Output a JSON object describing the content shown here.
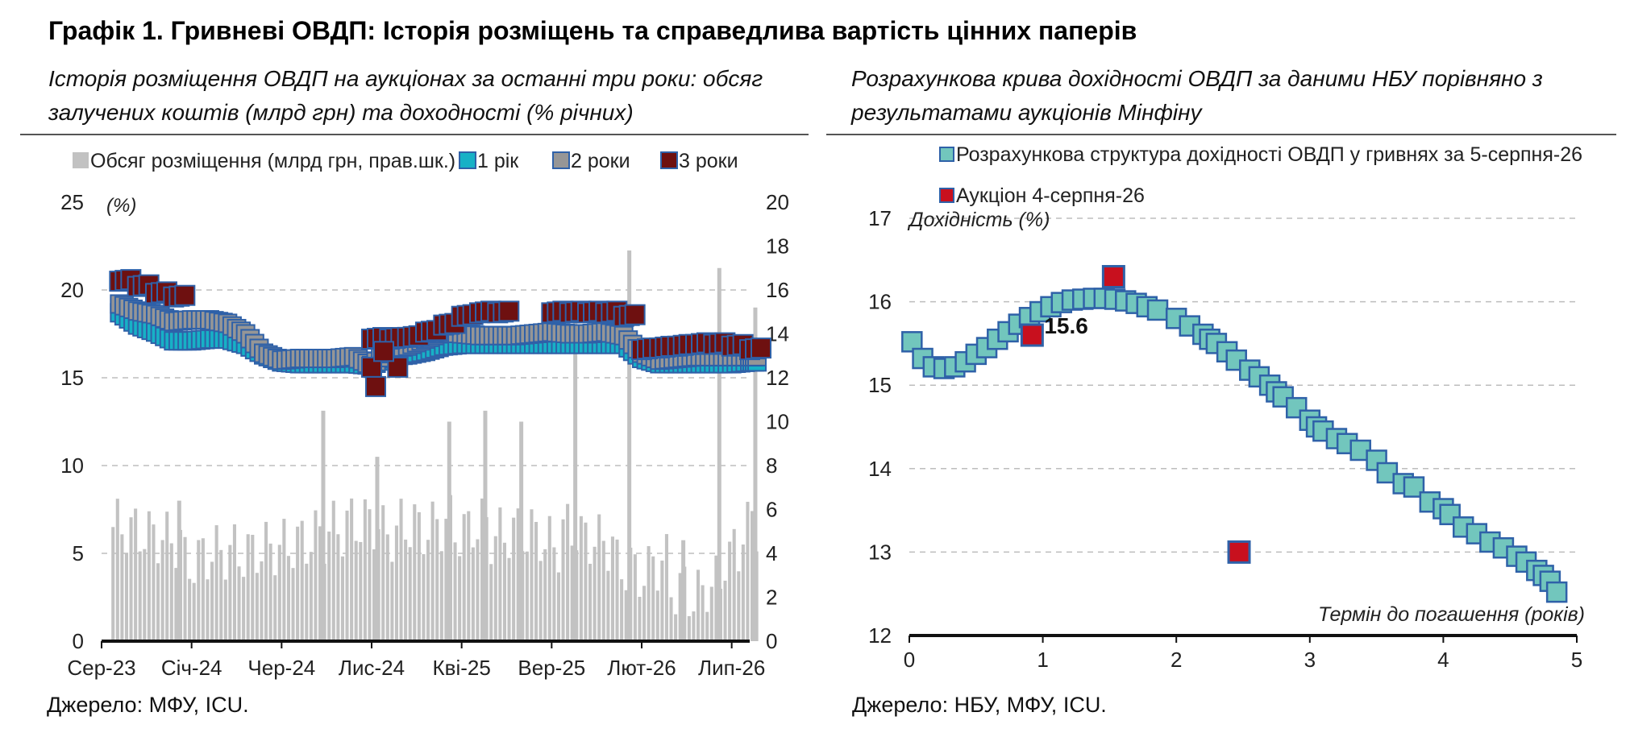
{
  "title": "Графік 1. Гривневі ОВДП: Історія розміщень та справедлива вартість цінних паперів",
  "colors": {
    "bars": "#c2c2c2",
    "y1": "#17b1c6",
    "y2": "#969696",
    "y3": "#6e1010",
    "fill_curve": "#72c6bd",
    "border": "#2f61a8",
    "auction": "#c8101e"
  },
  "left": {
    "subtitle": "Історія розміщення ОВДП на аукціонах за останні три роки: обсяг залучених коштів (млрд грн) та доходності (% річних)",
    "source": "Джерело: МФУ, ICU."
  },
  "right": {
    "subtitle": "Розрахункова крива дохідності ОВДП за даними НБУ порівняно з результатами аукціонів Мінфіну",
    "source": "Джерело: НБУ, МФУ, ICU."
  },
  "chart_data": [
    {
      "type": "bar",
      "legend": [
        {
          "key": "bars",
          "label": "Обсяг розміщення (млрд грн, прав.шк.)"
        },
        {
          "key": "y1",
          "label": "1 рік"
        },
        {
          "key": "y2",
          "label": "2 роки"
        },
        {
          "key": "y3",
          "label": "3 роки"
        }
      ],
      "legend_position": "top",
      "ylabel_left": "(%)",
      "ylim_left": [
        0,
        25
      ],
      "yticks_left": [
        0,
        5,
        10,
        15,
        20,
        25
      ],
      "ylim_right": [
        0,
        20
      ],
      "yticks_right": [
        0,
        2,
        4,
        6,
        8,
        10,
        12,
        14,
        16,
        18,
        20
      ],
      "x_range": [
        "2023-09",
        "2026-08"
      ],
      "xtick_labels": [
        {
          "label": "Сер-23",
          "x": "2023-08"
        },
        {
          "label": "Січ-24",
          "x": "2024-01"
        },
        {
          "label": "Чер-24",
          "x": "2024-06"
        },
        {
          "label": "Лис-24",
          "x": "2024-11"
        },
        {
          "label": "Кві-25",
          "x": "2025-04"
        },
        {
          "label": "Вер-25",
          "x": "2025-09"
        },
        {
          "label": "Лют-26",
          "x": "2026-02"
        },
        {
          "label": "Лип-26",
          "x": "2026-07"
        }
      ],
      "grid": true,
      "series": [
        {
          "key": "bars",
          "axis": "right",
          "points": [
            [
              "2023-09",
              5.2
            ],
            [
              "2023-10",
              5.0
            ],
            [
              "2023-11",
              4.8
            ],
            [
              "2023-12",
              4.6
            ],
            [
              "2024-01",
              3.6
            ],
            [
              "2024-02",
              4.0
            ],
            [
              "2024-03",
              4.1
            ],
            [
              "2024-04",
              4.0
            ],
            [
              "2024-05",
              4.2
            ],
            [
              "2024-06",
              4.3
            ],
            [
              "2024-07",
              4.5
            ],
            [
              "2024-08",
              4.8
            ],
            [
              "2024-09",
              5.1
            ],
            [
              "2024-10",
              5.4
            ],
            [
              "2024-11",
              5.4
            ],
            [
              "2024-12",
              4.9
            ],
            [
              "2025-01",
              5.3
            ],
            [
              "2025-02",
              5.1
            ],
            [
              "2025-03",
              5.4
            ],
            [
              "2025-04",
              5.0
            ],
            [
              "2025-05",
              5.3
            ],
            [
              "2025-06",
              4.8
            ],
            [
              "2025-07",
              5.0
            ],
            [
              "2025-08",
              4.9
            ],
            [
              "2025-09",
              4.4
            ],
            [
              "2025-10",
              5.1
            ],
            [
              "2025-11",
              4.7
            ],
            [
              "2025-12",
              4.5
            ],
            [
              "2026-01",
              3.4
            ],
            [
              "2026-02",
              3.1
            ],
            [
              "2026-03",
              3.6
            ],
            [
              "2026-04",
              2.4
            ],
            [
              "2026-05",
              2.1
            ],
            [
              "2026-06",
              2.6
            ],
            [
              "2026-07",
              4.0
            ],
            [
              "2026-08",
              5.3
            ]
          ],
          "spikes": [
            [
              "2023-12",
              6.4
            ],
            [
              "2024-08",
              10.5
            ],
            [
              "2024-11",
              8.4
            ],
            [
              "2025-03",
              10.0
            ],
            [
              "2025-05",
              10.5
            ],
            [
              "2025-07",
              10.0
            ],
            [
              "2025-10",
              15.5
            ],
            [
              "2026-01",
              17.8
            ],
            [
              "2026-04",
              4.6
            ],
            [
              "2026-06",
              17.0
            ],
            [
              "2026-08",
              15.2
            ]
          ]
        },
        {
          "key": "y1",
          "axis": "left",
          "points": [
            [
              "2023-09",
              18.7
            ],
            [
              "2023-10",
              18.0
            ],
            [
              "2023-11",
              17.6
            ],
            [
              "2023-12",
              17.1
            ],
            [
              "2024-01",
              17.1
            ],
            [
              "2024-02",
              17.2
            ],
            [
              "2024-03",
              17.2
            ],
            [
              "2024-04",
              16.9
            ],
            [
              "2024-05",
              16.3
            ],
            [
              "2024-06",
              15.9
            ],
            [
              "2024-07",
              15.8
            ],
            [
              "2024-08",
              15.8
            ],
            [
              "2024-09",
              15.8
            ],
            [
              "2024-10",
              15.8
            ],
            [
              "2024-11",
              15.7
            ],
            [
              "2024-12",
              16.2
            ],
            [
              "2025-01",
              16.3
            ],
            [
              "2025-02",
              16.5
            ],
            [
              "2025-03",
              16.8
            ],
            [
              "2025-04",
              16.9
            ],
            [
              "2025-05",
              16.9
            ],
            [
              "2025-06",
              16.9
            ],
            [
              "2025-07",
              16.9
            ],
            [
              "2025-08",
              16.9
            ],
            [
              "2025-09",
              16.9
            ],
            [
              "2025-10",
              16.9
            ],
            [
              "2025-11",
              16.9
            ],
            [
              "2025-12",
              16.9
            ],
            [
              "2026-01",
              16.9
            ],
            [
              "2026-02",
              16.1
            ],
            [
              "2026-03",
              15.8
            ],
            [
              "2026-04",
              15.8
            ],
            [
              "2026-05",
              15.8
            ],
            [
              "2026-06",
              15.8
            ],
            [
              "2026-07",
              15.8
            ],
            [
              "2026-08",
              15.9
            ]
          ]
        },
        {
          "key": "y2",
          "axis": "left",
          "points": [
            [
              "2023-09",
              19.2
            ],
            [
              "2023-10",
              18.8
            ],
            [
              "2023-11",
              18.6
            ],
            [
              "2023-12",
              18.2
            ],
            [
              "2024-01",
              18.3
            ],
            [
              "2024-02",
              18.3
            ],
            [
              "2024-03",
              18.1
            ],
            [
              "2024-04",
              17.5
            ],
            [
              "2024-05",
              16.4
            ],
            [
              "2024-06",
              16.0
            ],
            [
              "2024-07",
              16.1
            ],
            [
              "2024-08",
              16.1
            ],
            [
              "2024-09",
              16.1
            ],
            [
              "2024-10",
              16.2
            ],
            [
              "2024-11",
              15.7
            ],
            [
              "2024-12",
              16.6
            ],
            [
              "2025-01",
              16.8
            ],
            [
              "2025-02",
              17.2
            ],
            [
              "2025-03",
              17.6
            ],
            [
              "2025-04",
              17.5
            ],
            [
              "2025-05",
              17.4
            ],
            [
              "2025-06",
              17.4
            ],
            [
              "2025-07",
              17.4
            ],
            [
              "2025-08",
              17.5
            ],
            [
              "2025-09",
              17.6
            ],
            [
              "2025-10",
              17.5
            ],
            [
              "2025-11",
              17.5
            ],
            [
              "2025-12",
              17.6
            ],
            [
              "2026-01",
              17.4
            ],
            [
              "2026-02",
              16.4
            ],
            [
              "2026-03",
              16.0
            ],
            [
              "2026-04",
              16.1
            ],
            [
              "2026-05",
              16.2
            ],
            [
              "2026-06",
              16.2
            ],
            [
              "2026-07",
              16.2
            ],
            [
              "2026-08",
              16.2
            ]
          ]
        },
        {
          "key": "y3",
          "axis": "left",
          "points": [
            [
              "2023-09",
              20.5
            ],
            [
              "2023-10",
              20.2
            ],
            [
              "2023-11",
              19.8
            ],
            [
              "2023-12",
              19.6
            ],
            [
              "2024-11",
              17.2
            ],
            [
              "2024-12",
              17.2
            ],
            [
              "2025-01",
              17.3
            ],
            [
              "2025-02",
              17.6
            ],
            [
              "2025-03",
              18.0
            ],
            [
              "2025-04",
              18.5
            ],
            [
              "2025-05",
              18.7
            ],
            [
              "2025-06",
              18.7
            ],
            [
              "2025-09",
              18.7
            ],
            [
              "2025-10",
              18.7
            ],
            [
              "2025-11",
              18.7
            ],
            [
              "2025-12",
              18.7
            ],
            [
              "2026-01",
              18.5
            ],
            [
              "2026-02",
              16.6
            ],
            [
              "2026-03",
              16.7
            ],
            [
              "2026-04",
              16.8
            ],
            [
              "2026-05",
              16.9
            ],
            [
              "2026-06",
              16.9
            ],
            [
              "2026-07",
              16.8
            ],
            [
              "2026-08",
              16.6
            ]
          ],
          "outliers": [
            [
              "2024-11",
              15.6
            ],
            [
              "2024-11",
              14.5
            ],
            [
              "2024-12",
              15.6
            ],
            [
              "2024-11",
              16.5
            ]
          ]
        }
      ]
    },
    {
      "type": "scatter",
      "legend": [
        {
          "key": "curve",
          "label": "Розрахункова структура дохідності ОВДП у гривнях за 5-серпня-26"
        },
        {
          "key": "auction",
          "label": "Аукціон 4-серпня-26"
        }
      ],
      "xlabel": "Термін до погашення (років)",
      "ylabel": "Дохідність (%)",
      "xlim": [
        0,
        5
      ],
      "xticks": [
        0,
        1,
        2,
        3,
        4,
        5
      ],
      "ylim": [
        12,
        17
      ],
      "yticks": [
        12,
        13,
        14,
        15,
        16,
        17
      ],
      "grid": true,
      "series": [
        {
          "key": "curve",
          "points": [
            [
              0.02,
              15.52
            ],
            [
              0.1,
              15.32
            ],
            [
              0.18,
              15.22
            ],
            [
              0.26,
              15.2
            ],
            [
              0.34,
              15.22
            ],
            [
              0.42,
              15.28
            ],
            [
              0.5,
              15.37
            ],
            [
              0.58,
              15.45
            ],
            [
              0.66,
              15.55
            ],
            [
              0.74,
              15.64
            ],
            [
              0.82,
              15.73
            ],
            [
              0.9,
              15.81
            ],
            [
              0.98,
              15.88
            ],
            [
              1.06,
              15.94
            ],
            [
              1.14,
              15.99
            ],
            [
              1.22,
              16.02
            ],
            [
              1.3,
              16.03
            ],
            [
              1.38,
              16.04
            ],
            [
              1.46,
              16.04
            ],
            [
              1.54,
              16.03
            ],
            [
              1.62,
              16.01
            ],
            [
              1.7,
              15.98
            ],
            [
              1.78,
              15.94
            ],
            [
              1.86,
              15.9
            ],
            [
              2.0,
              15.8
            ],
            [
              2.1,
              15.71
            ],
            [
              2.2,
              15.61
            ],
            [
              2.25,
              15.55
            ],
            [
              2.3,
              15.5
            ],
            [
              2.38,
              15.4
            ],
            [
              2.45,
              15.3
            ],
            [
              2.55,
              15.18
            ],
            [
              2.62,
              15.1
            ],
            [
              2.7,
              15.0
            ],
            [
              2.75,
              14.92
            ],
            [
              2.8,
              14.86
            ],
            [
              2.9,
              14.73
            ],
            [
              3.0,
              14.58
            ],
            [
              3.05,
              14.5
            ],
            [
              3.1,
              14.45
            ],
            [
              3.2,
              14.36
            ],
            [
              3.28,
              14.3
            ],
            [
              3.38,
              14.22
            ],
            [
              3.5,
              14.1
            ],
            [
              3.58,
              13.95
            ],
            [
              3.7,
              13.82
            ],
            [
              3.78,
              13.78
            ],
            [
              3.9,
              13.6
            ],
            [
              4.0,
              13.52
            ],
            [
              4.05,
              13.45
            ],
            [
              4.15,
              13.3
            ],
            [
              4.25,
              13.22
            ],
            [
              4.35,
              13.12
            ],
            [
              4.45,
              13.05
            ],
            [
              4.55,
              12.95
            ],
            [
              4.62,
              12.88
            ],
            [
              4.7,
              12.78
            ],
            [
              4.75,
              12.72
            ],
            [
              4.8,
              12.65
            ],
            [
              4.85,
              12.52
            ]
          ]
        },
        {
          "key": "auction",
          "points": [
            [
              0.92,
              15.6
            ],
            [
              1.53,
              16.3
            ],
            [
              2.47,
              13.0
            ]
          ]
        }
      ],
      "annotations": [
        {
          "x": 0.92,
          "y": 15.6,
          "text": "15.6"
        }
      ]
    }
  ]
}
